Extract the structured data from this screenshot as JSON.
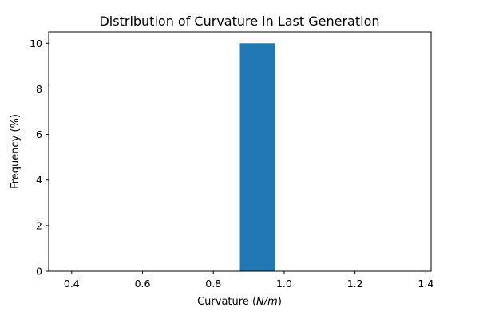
{
  "chart_data": {
    "type": "bar",
    "title": "Distribution of Curvature in Last Generation",
    "xlabel_prefix": "Curvature (",
    "xlabel_unit": "N/m",
    "xlabel_suffix": ")",
    "ylabel": "Frequency (%)",
    "xlim": [
      0.335,
      1.415
    ],
    "ylim": [
      0,
      10.5
    ],
    "xticks": [
      0.4,
      0.6,
      0.8,
      1.0,
      1.2,
      1.4
    ],
    "xtick_labels": [
      "0.4",
      "0.6",
      "0.8",
      "1.0",
      "1.2",
      "1.4"
    ],
    "yticks": [
      0,
      2,
      4,
      6,
      8,
      10
    ],
    "ytick_labels": [
      "0",
      "2",
      "4",
      "6",
      "8",
      "10"
    ],
    "bars": [
      {
        "x0": 0.875,
        "x1": 0.975,
        "value": 10
      }
    ],
    "color": "#1f77b4",
    "grid": false
  }
}
